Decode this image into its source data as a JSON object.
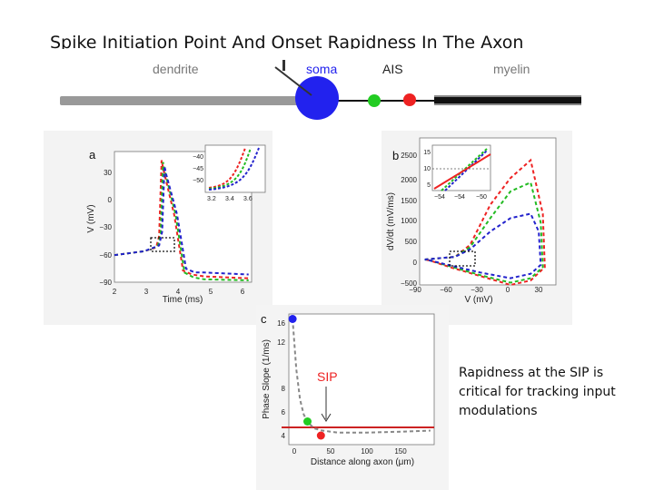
{
  "slide": {
    "title": "Spike Initiation Point And Onset Rapidness In The Axon",
    "caption": "Rapidness at the SIP is critical for tracking input modulations"
  },
  "schematic": {
    "dendrite_label": "dendrite",
    "soma_label": "soma",
    "ais_label": "AIS",
    "myelin_label": "myelin",
    "colors": {
      "soma": "#2222ee",
      "ais_start": "#22cc22",
      "ais_end": "#ee2222",
      "dendrite": "#999999",
      "myelin": "#111111"
    }
  },
  "panel_a": {
    "letter": "a",
    "xlabel": "Time (ms)",
    "ylabel": "V (mV)",
    "xticks": [
      "2",
      "3",
      "4",
      "5",
      "6"
    ],
    "yticks": [
      "30",
      "0",
      "−30",
      "−60",
      "−90"
    ],
    "inset_xticks": [
      "3.2",
      "3.4",
      "3.6"
    ],
    "inset_yticks": [
      "−40",
      "−45",
      "−50"
    ]
  },
  "panel_b": {
    "letter": "b",
    "xlabel": "V (mV)",
    "ylabel": "dV/dt (mV/ms)",
    "xticks": [
      "−90",
      "−60",
      "−30",
      "0",
      "30"
    ],
    "yticks": [
      "2500",
      "2000",
      "1500",
      "1000",
      "500",
      "0",
      "−500"
    ],
    "inset_xticks": [
      "−54",
      "−54",
      "−50"
    ],
    "inset_yticks": [
      "15",
      "10",
      "5"
    ]
  },
  "panel_c": {
    "letter": "c",
    "xlabel": "Distance along axon (μm)",
    "ylabel": "Phase Slope (1/ms)",
    "annotation": "SIP",
    "xticks": [
      "0",
      "50",
      "100",
      "150"
    ],
    "yticks": [
      "16",
      "12",
      "8",
      "6",
      "4"
    ]
  },
  "chart_data": [
    {
      "type": "line",
      "title": "a",
      "xlabel": "Time (ms)",
      "ylabel": "V (mV)",
      "xlim": [
        2,
        6.6
      ],
      "ylim": [
        -90,
        45
      ],
      "series": [
        {
          "name": "red",
          "x": [
            2.0,
            3.0,
            3.4,
            3.5,
            3.58,
            3.63,
            4.0,
            4.3,
            4.6,
            5.0,
            6.5
          ],
          "values": [
            -62,
            -58,
            -54,
            -42,
            36,
            28,
            -20,
            -78,
            -82,
            -84,
            -86
          ]
        },
        {
          "name": "green",
          "x": [
            2.0,
            3.0,
            3.45,
            3.55,
            3.63,
            3.68,
            4.05,
            4.35,
            4.65,
            5.0,
            6.5
          ],
          "values": [
            -62,
            -58,
            -53,
            -40,
            34,
            26,
            -20,
            -80,
            -85,
            -87,
            -88
          ]
        },
        {
          "name": "blue",
          "x": [
            2.0,
            3.0,
            3.5,
            3.6,
            3.68,
            3.73,
            4.1,
            4.4,
            4.7,
            5.0,
            6.5
          ],
          "values": [
            -62,
            -58,
            -52,
            -38,
            30,
            22,
            -20,
            -76,
            -80,
            -80,
            -82
          ]
        }
      ]
    },
    {
      "type": "line",
      "title": "b",
      "xlabel": "V (mV)",
      "ylabel": "dV/dt (mV/ms)",
      "xlim": [
        -90,
        45
      ],
      "ylim": [
        -600,
        2700
      ],
      "series": [
        {
          "name": "red",
          "x": [
            -85,
            -70,
            -55,
            -40,
            -20,
            0,
            20,
            32,
            34,
            20,
            0,
            -30,
            -60,
            -80,
            -85
          ],
          "values": [
            -30,
            0,
            30,
            300,
            1200,
            1800,
            2200,
            1000,
            -200,
            -500,
            -600,
            -400,
            -200,
            -50,
            -30
          ]
        },
        {
          "name": "green",
          "x": [
            -85,
            -70,
            -55,
            -40,
            -20,
            0,
            20,
            30,
            32,
            20,
            0,
            -30,
            -60,
            -80,
            -85
          ],
          "values": [
            -30,
            0,
            30,
            250,
            900,
            1500,
            1700,
            800,
            -200,
            -450,
            -550,
            -380,
            -180,
            -50,
            -30
          ]
        },
        {
          "name": "blue",
          "x": [
            -85,
            -70,
            -55,
            -40,
            -20,
            0,
            20,
            28,
            30,
            20,
            0,
            -30,
            -60,
            -80,
            -85
          ],
          "values": [
            -30,
            0,
            30,
            200,
            600,
            900,
            1000,
            600,
            -150,
            -350,
            -450,
            -320,
            -160,
            -50,
            -30
          ]
        }
      ]
    },
    {
      "type": "scatter",
      "title": "c",
      "xlabel": "Distance along axon (μm)",
      "ylabel": "Phase Slope (1/ms)",
      "xlim": [
        -5,
        190
      ],
      "ylim": [
        3.5,
        16.5
      ],
      "series": [
        {
          "name": "phase slope",
          "x": [
            0,
            5,
            10,
            15,
            20,
            25,
            30,
            40,
            50,
            60,
            80,
            100,
            150,
            185
          ],
          "values": [
            16,
            11,
            8,
            6.5,
            5.8,
            5.4,
            5.1,
            4.9,
            4.8,
            4.7,
            4.7,
            4.7,
            4.8,
            4.9
          ]
        }
      ],
      "markers": [
        {
          "name": "soma",
          "x": 0,
          "y": 16,
          "color": "#2222ee"
        },
        {
          "name": "AIS start",
          "x": 20,
          "y": 5.8,
          "color": "#22cc22"
        },
        {
          "name": "SIP",
          "x": 38,
          "y": 4.4,
          "color": "#ee2222"
        }
      ],
      "threshold_y": 5.0
    }
  ]
}
